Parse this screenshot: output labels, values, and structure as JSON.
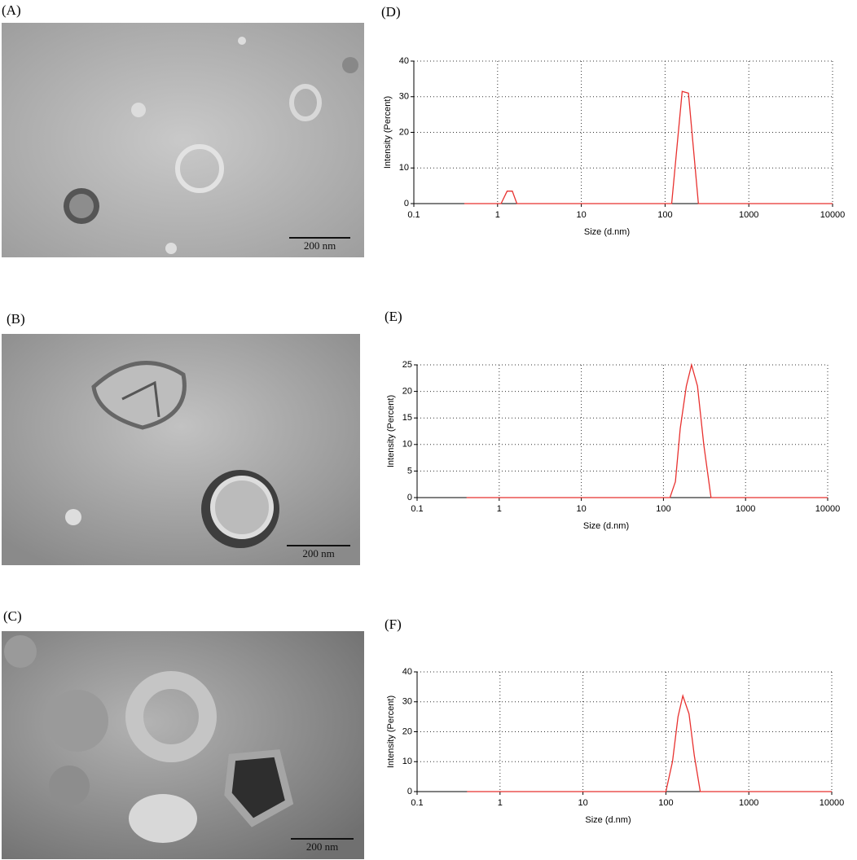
{
  "images": [
    {
      "label": "(A)",
      "scale_bar": "200 nm"
    },
    {
      "label": "(B)",
      "scale_bar": "200 nm"
    },
    {
      "label": "(C)",
      "scale_bar": "200 nm"
    }
  ],
  "chart_data": [
    {
      "type": "line",
      "panel_label": "(D)",
      "xlabel": "Size (d.nm)",
      "ylabel": "Intensity (Percent)",
      "log_x": true,
      "grid": true,
      "x": [
        0.4,
        1.1,
        1.3,
        1.5,
        1.7,
        120,
        160,
        190,
        250,
        10000
      ],
      "series": [
        {
          "color": "#e8312f",
          "values": [
            0,
            0,
            3.5,
            3.5,
            0,
            0,
            31.5,
            31,
            0,
            0
          ]
        }
      ],
      "xlim": [
        0.1,
        10000
      ],
      "xticks": [
        0.1,
        1,
        10,
        100,
        1000,
        10000
      ],
      "ylim": [
        0,
        40
      ],
      "yticks": [
        0,
        10,
        20,
        30,
        40
      ]
    },
    {
      "type": "line",
      "panel_label": "(E)",
      "xlabel": "Size (d.nm)",
      "ylabel": "Intensity (Percent)",
      "log_x": true,
      "grid": true,
      "x": [
        0.4,
        120,
        140,
        160,
        190,
        220,
        260,
        310,
        380,
        10000
      ],
      "series": [
        {
          "color": "#e8312f",
          "values": [
            0,
            0,
            3,
            13,
            21,
            25,
            21,
            10,
            0,
            0
          ]
        }
      ],
      "xlim": [
        0.1,
        10000
      ],
      "xticks": [
        0.1,
        1,
        10,
        100,
        1000,
        10000
      ],
      "ylim": [
        0,
        25
      ],
      "yticks": [
        0,
        5,
        10,
        15,
        20,
        25
      ]
    },
    {
      "type": "line",
      "panel_label": "(F)",
      "xlabel": "Size (d.nm)",
      "ylabel": "Intensity (Percent)",
      "log_x": true,
      "grid": true,
      "x": [
        0.4,
        100,
        120,
        140,
        160,
        190,
        220,
        260,
        10000
      ],
      "series": [
        {
          "color": "#e8312f",
          "values": [
            0,
            0,
            10,
            25,
            32,
            26,
            12,
            0,
            0
          ]
        }
      ],
      "xlim": [
        0.1,
        10000
      ],
      "xticks": [
        0.1,
        1,
        10,
        100,
        1000,
        10000
      ],
      "ylim": [
        0,
        40
      ],
      "yticks": [
        0,
        10,
        20,
        30,
        40
      ]
    }
  ]
}
